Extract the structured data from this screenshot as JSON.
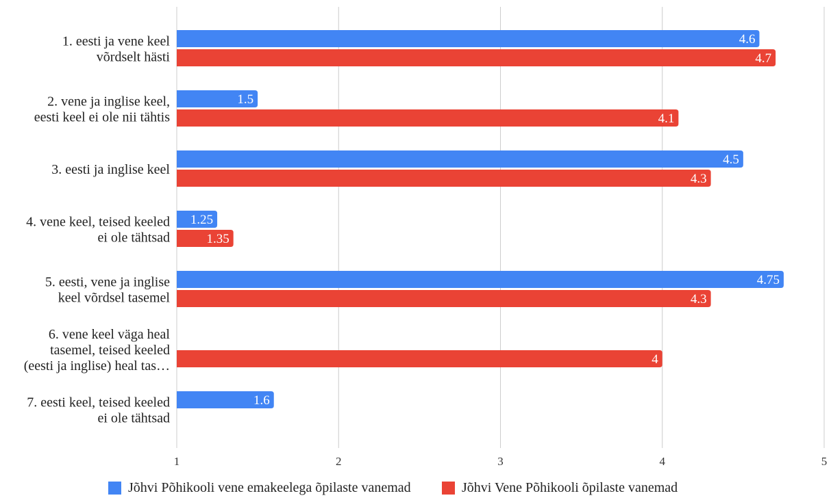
{
  "chart_data": {
    "type": "bar",
    "orientation": "horizontal",
    "title": "",
    "xlabel": "",
    "ylabel": "",
    "xlim": [
      1,
      5
    ],
    "x_ticks": [
      "1",
      "2",
      "3",
      "4",
      "5"
    ],
    "grid": true,
    "legend_position": "bottom",
    "categories": [
      [
        "1. eesti ja vene keel",
        "võrdselt hästi"
      ],
      [
        "2. vene ja inglise keel,",
        "eesti keel ei ole nii tähtis"
      ],
      [
        "3. eesti ja inglise keel"
      ],
      [
        "4. vene keel, teised keeled",
        "ei ole tähtsad"
      ],
      [
        "5. eesti, vene ja inglise",
        "keel võrdsel tasemel"
      ],
      [
        "6. vene keel väga heal",
        "tasemel, teised keeled",
        "(eesti ja inglise) heal tas…"
      ],
      [
        "7. eesti keel, teised keeled",
        "ei ole tähtsad"
      ]
    ],
    "series": [
      {
        "name": "Jõhvi Põhikooli vene emakeelega õpilaste vanemad",
        "color": "#4285f4",
        "values": [
          4.6,
          1.5,
          4.5,
          1.25,
          4.75,
          null,
          1.6
        ],
        "labels": [
          "4.6",
          "1.5",
          "4.5",
          "1.25",
          "4.75",
          "",
          "1.6"
        ]
      },
      {
        "name": "Jõhvi Vene Põhikooli õpilaste vanemad",
        "color": "#ea4335",
        "values": [
          4.7,
          4.1,
          4.3,
          1.35,
          4.3,
          4.0,
          null
        ],
        "labels": [
          "4.7",
          "4.1",
          "4.3",
          "1.35",
          "4.3",
          "4",
          ""
        ]
      }
    ]
  }
}
